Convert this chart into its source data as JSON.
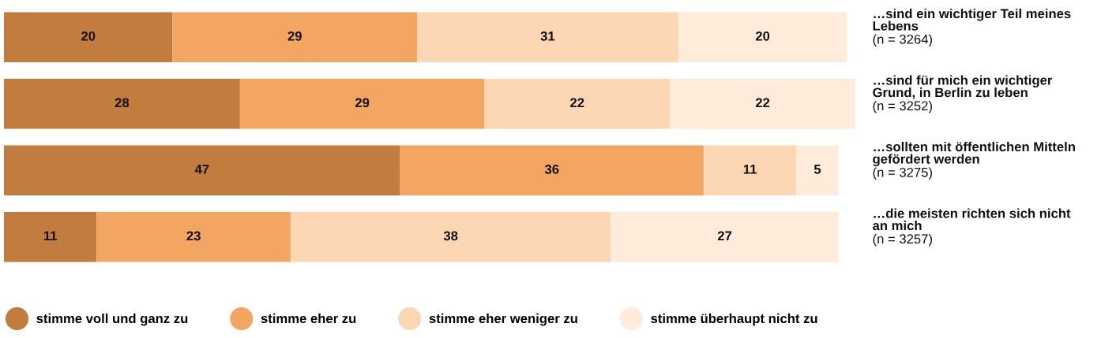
{
  "chart_data": {
    "type": "bar",
    "orientation": "horizontal",
    "stacked": true,
    "data_labels": true,
    "legend": "bottom",
    "categories": [
      "…sind ein wichtiger Teil meines\nLebens\n(n = 3264)",
      "…sind für mich ein wichtiger\nGrund, in Berlin zu leben\n(n = 3252)",
      "…sollten mit öffentlichen Mitteln\ngefördert werden\n(n = 3275)",
      "…die meisten richten sich nicht\nan mich\n(n = 3257)"
    ],
    "series": [
      {
        "name": "stimme voll und ganz zu",
        "color": "#c27c3e",
        "values": [
          20,
          28,
          47,
          11
        ]
      },
      {
        "name": "stimme eher zu",
        "color": "#f2a661",
        "values": [
          29,
          29,
          36,
          23
        ]
      },
      {
        "name": "stimme eher weniger zu",
        "color": "#fdd6b4",
        "values": [
          31,
          22,
          11,
          38
        ]
      },
      {
        "name": "stimme überhaupt nicht zu",
        "color": "#feebd9",
        "values": [
          20,
          22,
          5,
          27
        ]
      }
    ]
  }
}
